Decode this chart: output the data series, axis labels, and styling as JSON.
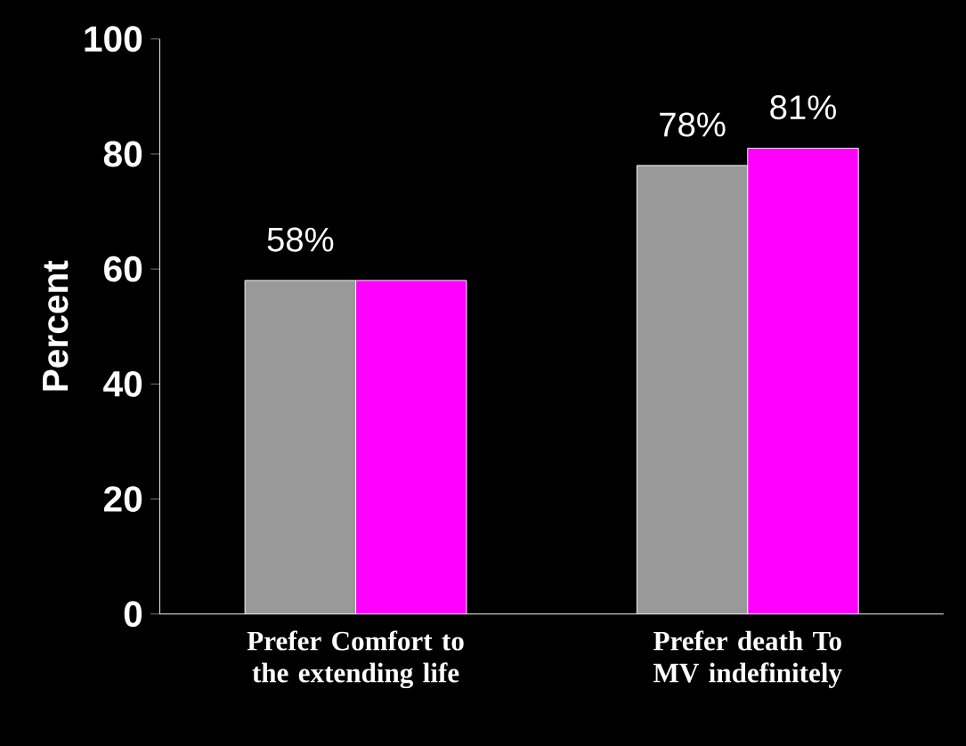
{
  "chart_data": {
    "type": "bar",
    "ylabel": "Percent",
    "categories": [
      "Prefer Comfort to the extending life",
      "Prefer death To MV indefinitely"
    ],
    "series": [
      {
        "color": "#999999",
        "values": [
          58,
          78
        ],
        "value_labels": [
          "58%",
          "78%"
        ]
      },
      {
        "color": "#ff00ff",
        "values": [
          58,
          81
        ],
        "value_labels": [
          null,
          "81%"
        ]
      }
    ],
    "ylim": [
      0,
      100
    ],
    "yticks": [
      0,
      20,
      40,
      60,
      80,
      100
    ],
    "grid": false,
    "legend": false
  }
}
